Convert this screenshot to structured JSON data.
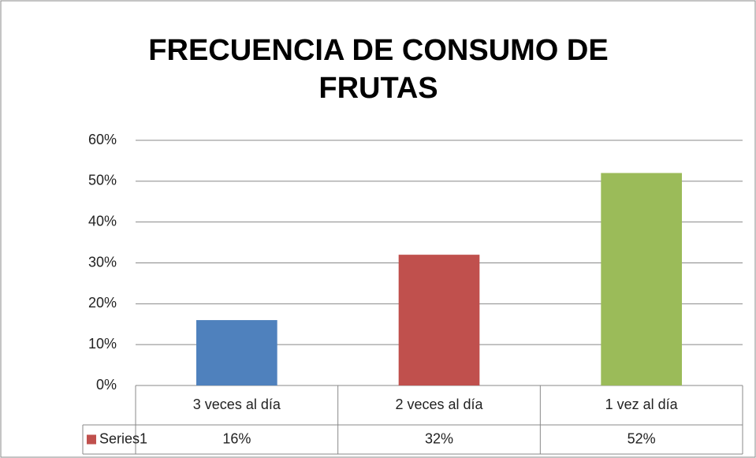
{
  "chart_data": {
    "type": "bar",
    "title": "FRECUENCIA DE CONSUMO DE FRUTAS",
    "categories": [
      "3 veces al día",
      "2 veces al día",
      "1 vez al día"
    ],
    "series": [
      {
        "name": "Series1",
        "color": "#c0504d",
        "colors": [
          "#4f81bd",
          "#c0504d",
          "#9bbb59"
        ],
        "values": [
          16,
          32,
          52
        ],
        "value_labels": [
          "16%",
          "32%",
          "52%"
        ]
      }
    ],
    "ylim": [
      0,
      60
    ],
    "yticks": [
      {
        "value": 0,
        "label": "0%"
      },
      {
        "value": 10,
        "label": "10%"
      },
      {
        "value": 20,
        "label": "20%"
      },
      {
        "value": 30,
        "label": "30%"
      },
      {
        "value": 40,
        "label": "40%"
      },
      {
        "value": 50,
        "label": "50%"
      },
      {
        "value": 60,
        "label": "60%"
      }
    ],
    "grid": true,
    "data_table": true
  }
}
